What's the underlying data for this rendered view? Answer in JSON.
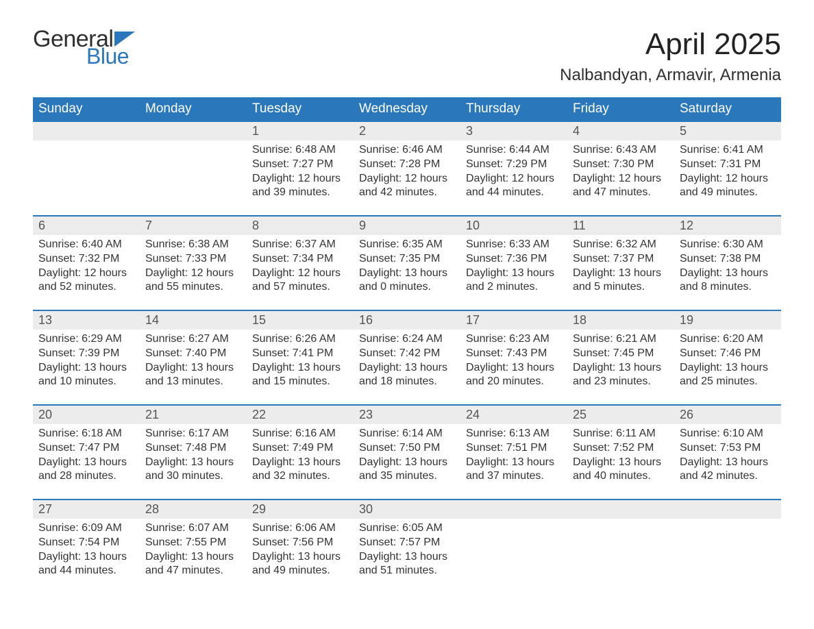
{
  "logo": {
    "text_general": "General",
    "text_blue": "Blue",
    "flag_color": "#2a77bb"
  },
  "title": "April 2025",
  "location": "Nalbandyan, Armavir, Armenia",
  "colors": {
    "header_bg": "#2a77bb",
    "header_text": "#ffffff",
    "daynum_bg": "#ececec",
    "daynum_border": "#2a77bb",
    "text": "#333333",
    "background": "#ffffff"
  },
  "fonts": {
    "title_size_pt": 33,
    "location_size_pt": 18,
    "weekday_size_pt": 14,
    "daynum_size_pt": 14,
    "detail_size_pt": 12
  },
  "weekdays": [
    "Sunday",
    "Monday",
    "Tuesday",
    "Wednesday",
    "Thursday",
    "Friday",
    "Saturday"
  ],
  "leading_blanks": 2,
  "days": [
    {
      "n": 1,
      "sunrise": "6:48 AM",
      "sunset": "7:27 PM",
      "daylight": "12 hours and 39 minutes."
    },
    {
      "n": 2,
      "sunrise": "6:46 AM",
      "sunset": "7:28 PM",
      "daylight": "12 hours and 42 minutes."
    },
    {
      "n": 3,
      "sunrise": "6:44 AM",
      "sunset": "7:29 PM",
      "daylight": "12 hours and 44 minutes."
    },
    {
      "n": 4,
      "sunrise": "6:43 AM",
      "sunset": "7:30 PM",
      "daylight": "12 hours and 47 minutes."
    },
    {
      "n": 5,
      "sunrise": "6:41 AM",
      "sunset": "7:31 PM",
      "daylight": "12 hours and 49 minutes."
    },
    {
      "n": 6,
      "sunrise": "6:40 AM",
      "sunset": "7:32 PM",
      "daylight": "12 hours and 52 minutes."
    },
    {
      "n": 7,
      "sunrise": "6:38 AM",
      "sunset": "7:33 PM",
      "daylight": "12 hours and 55 minutes."
    },
    {
      "n": 8,
      "sunrise": "6:37 AM",
      "sunset": "7:34 PM",
      "daylight": "12 hours and 57 minutes."
    },
    {
      "n": 9,
      "sunrise": "6:35 AM",
      "sunset": "7:35 PM",
      "daylight": "13 hours and 0 minutes."
    },
    {
      "n": 10,
      "sunrise": "6:33 AM",
      "sunset": "7:36 PM",
      "daylight": "13 hours and 2 minutes."
    },
    {
      "n": 11,
      "sunrise": "6:32 AM",
      "sunset": "7:37 PM",
      "daylight": "13 hours and 5 minutes."
    },
    {
      "n": 12,
      "sunrise": "6:30 AM",
      "sunset": "7:38 PM",
      "daylight": "13 hours and 8 minutes."
    },
    {
      "n": 13,
      "sunrise": "6:29 AM",
      "sunset": "7:39 PM",
      "daylight": "13 hours and 10 minutes."
    },
    {
      "n": 14,
      "sunrise": "6:27 AM",
      "sunset": "7:40 PM",
      "daylight": "13 hours and 13 minutes."
    },
    {
      "n": 15,
      "sunrise": "6:26 AM",
      "sunset": "7:41 PM",
      "daylight": "13 hours and 15 minutes."
    },
    {
      "n": 16,
      "sunrise": "6:24 AM",
      "sunset": "7:42 PM",
      "daylight": "13 hours and 18 minutes."
    },
    {
      "n": 17,
      "sunrise": "6:23 AM",
      "sunset": "7:43 PM",
      "daylight": "13 hours and 20 minutes."
    },
    {
      "n": 18,
      "sunrise": "6:21 AM",
      "sunset": "7:45 PM",
      "daylight": "13 hours and 23 minutes."
    },
    {
      "n": 19,
      "sunrise": "6:20 AM",
      "sunset": "7:46 PM",
      "daylight": "13 hours and 25 minutes."
    },
    {
      "n": 20,
      "sunrise": "6:18 AM",
      "sunset": "7:47 PM",
      "daylight": "13 hours and 28 minutes."
    },
    {
      "n": 21,
      "sunrise": "6:17 AM",
      "sunset": "7:48 PM",
      "daylight": "13 hours and 30 minutes."
    },
    {
      "n": 22,
      "sunrise": "6:16 AM",
      "sunset": "7:49 PM",
      "daylight": "13 hours and 32 minutes."
    },
    {
      "n": 23,
      "sunrise": "6:14 AM",
      "sunset": "7:50 PM",
      "daylight": "13 hours and 35 minutes."
    },
    {
      "n": 24,
      "sunrise": "6:13 AM",
      "sunset": "7:51 PM",
      "daylight": "13 hours and 37 minutes."
    },
    {
      "n": 25,
      "sunrise": "6:11 AM",
      "sunset": "7:52 PM",
      "daylight": "13 hours and 40 minutes."
    },
    {
      "n": 26,
      "sunrise": "6:10 AM",
      "sunset": "7:53 PM",
      "daylight": "13 hours and 42 minutes."
    },
    {
      "n": 27,
      "sunrise": "6:09 AM",
      "sunset": "7:54 PM",
      "daylight": "13 hours and 44 minutes."
    },
    {
      "n": 28,
      "sunrise": "6:07 AM",
      "sunset": "7:55 PM",
      "daylight": "13 hours and 47 minutes."
    },
    {
      "n": 29,
      "sunrise": "6:06 AM",
      "sunset": "7:56 PM",
      "daylight": "13 hours and 49 minutes."
    },
    {
      "n": 30,
      "sunrise": "6:05 AM",
      "sunset": "7:57 PM",
      "daylight": "13 hours and 51 minutes."
    }
  ],
  "labels": {
    "sunrise": "Sunrise:",
    "sunset": "Sunset:",
    "daylight": "Daylight:"
  }
}
